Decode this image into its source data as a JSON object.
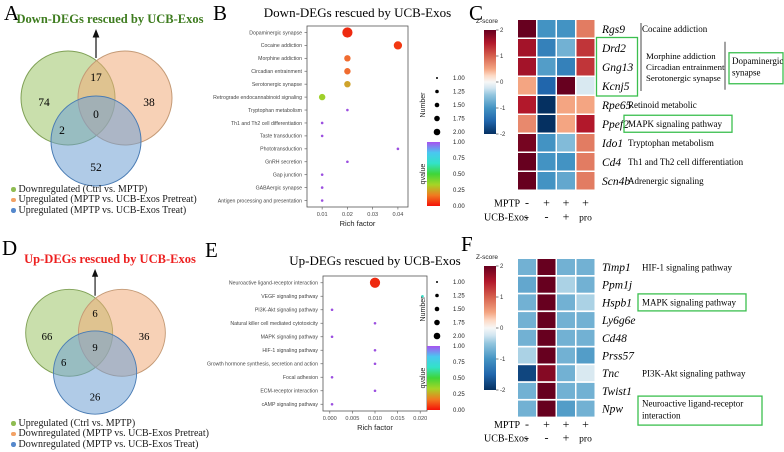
{
  "panel_letters": {
    "A": "A",
    "B": "B",
    "C": "C",
    "D": "D",
    "E": "E",
    "F": "F"
  },
  "colors": {
    "annotation_box_green": "#3bbf4f",
    "heatmap_max_red": "#67001f",
    "heatmap_min_blue": "#053061",
    "qvalue_gradient_top_to_bottom": [
      "#a852f0",
      "#49c8f0",
      "#32e3c8",
      "#3fd538",
      "#a5d526",
      "#f07a20",
      "#f51208"
    ]
  },
  "chart_data": [
    {
      "id": "A",
      "type": "venn",
      "title": "Down-DEGs rescued by UCB-Exos",
      "title_color": "#3e7c1f",
      "sets": [
        {
          "label": "Downregulated (Ctrl vs. MPTP)",
          "fill": "#9cc468",
          "stroke": "#7fa055",
          "bullet": "#8fbc52"
        },
        {
          "label": "Upregulated (MPTP vs. UCB-Exos Pretreat)",
          "fill": "#f0ab7a",
          "stroke": "#c49a76",
          "bullet": "#f2a266"
        },
        {
          "label": "Upregulated (MPTP vs. UCB-Exos Treat)",
          "fill": "#6fa0d4",
          "stroke": "#4a7cb4",
          "bullet": "#5588cc"
        }
      ],
      "counts": {
        "a_only": 74,
        "b_only": 38,
        "c_only": 52,
        "ab": 17,
        "ac": 2,
        "abc": 0
      }
    },
    {
      "id": "B",
      "type": "scatter",
      "title": "Down-DEGs rescued by UCB-Exos",
      "xlabel": "Rich factor",
      "xlim": [
        0.004,
        0.044
      ],
      "xticks": [
        0.01,
        0.02,
        0.03,
        0.04
      ],
      "xtick_labels": [
        "0.01",
        "0.02",
        "0.03",
        "0.04"
      ],
      "points": [
        {
          "label": "Dopaminergic synapse",
          "x": 0.02,
          "number": 2.0,
          "qvalue": 0.0,
          "color": "#ee2a10"
        },
        {
          "label": "Cocaine addiction",
          "x": 0.04,
          "number": 1.75,
          "qvalue": 0.03,
          "color": "#f23812"
        },
        {
          "label": "Morphine addiction",
          "x": 0.02,
          "number": 1.5,
          "qvalue": 0.12,
          "color": "#f06c30"
        },
        {
          "label": "Circadian entrainment",
          "x": 0.02,
          "number": 1.5,
          "qvalue": 0.12,
          "color": "#f06c30"
        },
        {
          "label": "Serotonergic synapse",
          "x": 0.02,
          "number": 1.5,
          "qvalue": 0.3,
          "color": "#cfa32b"
        },
        {
          "label": "Retrograde endocannabinoid signaling",
          "x": 0.01,
          "number": 1.5,
          "qvalue": 0.45,
          "color": "#9fd02a"
        },
        {
          "label": "Tryptophan metabolism",
          "x": 0.02,
          "number": 1.0,
          "qvalue": 1.0,
          "color": "#9b4fe0"
        },
        {
          "label": "Th1 and Th2 cell differentiation",
          "x": 0.01,
          "number": 1.0,
          "qvalue": 1.0,
          "color": "#9b4fe0"
        },
        {
          "label": "Taste transduction",
          "x": 0.01,
          "number": 1.0,
          "qvalue": 1.0,
          "color": "#9b4fe0"
        },
        {
          "label": "Phototransduction",
          "x": 0.04,
          "number": 1.0,
          "qvalue": 1.0,
          "color": "#9b4fe0"
        },
        {
          "label": "GnRH secretion",
          "x": 0.02,
          "number": 1.0,
          "qvalue": 1.0,
          "color": "#9b4fe0"
        },
        {
          "label": "Gap junction",
          "x": 0.01,
          "number": 1.0,
          "qvalue": 1.0,
          "color": "#9b4fe0"
        },
        {
          "label": "GABAergic synapse",
          "x": 0.01,
          "number": 1.0,
          "qvalue": 1.0,
          "color": "#9b4fe0"
        },
        {
          "label": "Antigen processing and presentation",
          "x": 0.01,
          "number": 1.0,
          "qvalue": 1.0,
          "color": "#9b4fe0"
        }
      ],
      "legend": {
        "size_title": "Number",
        "sizes": [
          "1.00",
          "1.25",
          "1.50",
          "1.75",
          "2.00"
        ],
        "color_title": "qvalue",
        "color_ticks": [
          "1.00",
          "0.75",
          "0.50",
          "0.25",
          "0.00"
        ]
      }
    },
    {
      "id": "C",
      "type": "heatmap",
      "colorbar_title": "Z-score",
      "colorbar_ticks": [
        "2",
        "1",
        "0",
        "-1",
        "-2"
      ],
      "vmin": -2,
      "vmax": 2,
      "rows": [
        {
          "gene": "Rgs9",
          "values": [
            2.0,
            -1.0,
            -1.0,
            0.8
          ]
        },
        {
          "gene": "Drd2",
          "values": [
            1.6,
            -1.2,
            -0.7,
            1.3
          ]
        },
        {
          "gene": "Gng13",
          "values": [
            1.6,
            -0.9,
            -1.2,
            1.3
          ]
        },
        {
          "gene": "Kcnj5",
          "values": [
            0.5,
            -1.5,
            2.0,
            -0.2
          ]
        },
        {
          "gene": "Rpe65",
          "values": [
            1.5,
            -2.0,
            0.5,
            0.5
          ]
        },
        {
          "gene": "Ppef2",
          "values": [
            0.7,
            -2.0,
            0.5,
            1.5
          ]
        },
        {
          "gene": "Ido1",
          "values": [
            1.9,
            -1.0,
            -0.6,
            0.8
          ]
        },
        {
          "gene": "Cd4",
          "values": [
            2.0,
            -1.0,
            -1.0,
            0.8
          ]
        },
        {
          "gene": "Scn4b",
          "values": [
            2.0,
            -1.0,
            -0.8,
            0.8
          ]
        }
      ],
      "condition_rows": [
        {
          "name": "MPTP",
          "values": [
            "-",
            "+",
            "+",
            "+"
          ]
        },
        {
          "name": "UCB-Exos",
          "values": [
            "-",
            "-",
            "+",
            "pro"
          ]
        }
      ],
      "annotations": [
        {
          "row": 0,
          "text": "Cocaine addiction",
          "boxed": false
        },
        {
          "row": 4,
          "text": "Retinoid metabolic",
          "boxed": false
        },
        {
          "row": 5,
          "text": "MAPK signaling pathway",
          "boxed": true
        },
        {
          "row": 6,
          "text": "Tryptophan metabolism",
          "boxed": false
        },
        {
          "row": 7,
          "text": "Th1 and Th2 cell differentiation",
          "boxed": false
        },
        {
          "row": 8,
          "text": "Adrenergic signaling",
          "boxed": false
        }
      ],
      "group": {
        "boxed_gene_rows": [
          1,
          3
        ],
        "lines": [
          "Morphine addiction",
          "Circadian entrainment",
          "Serotonergic synapse"
        ],
        "side_label_lines": [
          "Dopaminergic",
          "synapse"
        ]
      }
    },
    {
      "id": "D",
      "type": "venn",
      "title": "Up-DEGs rescued by UCB-Exos",
      "title_color": "#ed1f1f",
      "sets": [
        {
          "label": "Upregulated (Ctrl vs. MPTP)",
          "fill": "#9cc468",
          "stroke": "#7fa055",
          "bullet": "#8fbc52"
        },
        {
          "label": "Downregulated (MPTP vs. UCB-Exos Pretreat)",
          "fill": "#f0ab7a",
          "stroke": "#c49a76",
          "bullet": "#f2a266"
        },
        {
          "label": "Downregulated (MPTP vs. UCB-Exos Treat)",
          "fill": "#6fa0d4",
          "stroke": "#4a7cb4",
          "bullet": "#5588cc"
        }
      ],
      "counts": {
        "a_only": 66,
        "b_only": 36,
        "c_only": 26,
        "ab": 6,
        "ac": 6,
        "abc": 9
      }
    },
    {
      "id": "E",
      "type": "scatter",
      "title": "Up-DEGs rescued by UCB-Exos",
      "xlabel": "Rich factor",
      "xlim": [
        -0.0015,
        0.0215
      ],
      "xticks": [
        0.0,
        0.005,
        0.01,
        0.015,
        0.02
      ],
      "xtick_labels": [
        "0.000",
        "0.005",
        "0.010",
        "0.015",
        "0.020"
      ],
      "points": [
        {
          "label": "Neuroactive ligand-receptor interaction",
          "x": 0.01,
          "number": 2.0,
          "qvalue": 0.0,
          "color": "#ee2a10"
        },
        {
          "label": "VEGF signaling pathway",
          "x": 0.0205,
          "number": 1.0,
          "qvalue": 0.75,
          "color": "#35e0c8"
        },
        {
          "label": "PI3K-Akt signaling pathway",
          "x": 0.0005,
          "number": 1.0,
          "qvalue": 1.0,
          "color": "#9b4fe0"
        },
        {
          "label": "Natural killer cell mediated cytotoxicity",
          "x": 0.01,
          "number": 1.0,
          "qvalue": 1.0,
          "color": "#9b4fe0"
        },
        {
          "label": "MAPK signaling pathway",
          "x": 0.0005,
          "number": 1.0,
          "qvalue": 1.0,
          "color": "#9b4fe0"
        },
        {
          "label": "HIF-1 signaling pathway",
          "x": 0.01,
          "number": 1.0,
          "qvalue": 1.0,
          "color": "#9b4fe0"
        },
        {
          "label": "Growth hormone synthesis, secretion and action",
          "x": 0.01,
          "number": 1.0,
          "qvalue": 1.0,
          "color": "#9b4fe0"
        },
        {
          "label": "Focal adhesion",
          "x": 0.0005,
          "number": 1.0,
          "qvalue": 1.0,
          "color": "#9b4fe0"
        },
        {
          "label": "ECM-receptor interaction",
          "x": 0.01,
          "number": 1.0,
          "qvalue": 1.0,
          "color": "#9b4fe0"
        },
        {
          "label": "cAMP signaling pathway",
          "x": 0.0005,
          "number": 1.0,
          "qvalue": 1.0,
          "color": "#9b4fe0"
        }
      ],
      "legend": {
        "size_title": "Number",
        "sizes": [
          "1.00",
          "1.25",
          "1.50",
          "1.75",
          "2.00"
        ],
        "color_title": "qvalue",
        "color_ticks": [
          "1.00",
          "0.75",
          "0.50",
          "0.25",
          "0.00"
        ]
      }
    },
    {
      "id": "F",
      "type": "heatmap",
      "colorbar_title": "Z-score",
      "colorbar_ticks": [
        "2",
        "1",
        "0",
        "-1",
        "-2"
      ],
      "vmin": -2,
      "vmax": 2,
      "rows": [
        {
          "gene": "Timp1",
          "values": [
            -0.7,
            2.0,
            -0.7,
            -0.7
          ]
        },
        {
          "gene": "Ppm1j",
          "values": [
            -0.8,
            2.0,
            -0.4,
            -0.7
          ]
        },
        {
          "gene": "Hspb1",
          "values": [
            -0.7,
            2.0,
            -0.7,
            -0.4
          ]
        },
        {
          "gene": "Ly6g6e",
          "values": [
            -0.7,
            2.0,
            -0.7,
            -0.7
          ]
        },
        {
          "gene": "Cd48",
          "values": [
            -0.7,
            2.0,
            -0.7,
            -0.7
          ]
        },
        {
          "gene": "Prss57",
          "values": [
            -0.4,
            2.0,
            -0.7,
            -0.9
          ]
        },
        {
          "gene": "Tnc",
          "values": [
            -1.8,
            1.8,
            -0.7,
            -0.2
          ]
        },
        {
          "gene": "Twist1",
          "values": [
            -0.7,
            2.0,
            -0.7,
            -0.7
          ]
        },
        {
          "gene": "Npw",
          "values": [
            -0.7,
            2.0,
            -0.9,
            -0.7
          ]
        }
      ],
      "condition_rows": [
        {
          "name": "MPTP",
          "values": [
            "-",
            "+",
            "+",
            "+"
          ]
        },
        {
          "name": "UCB-Exos",
          "values": [
            "-",
            "-",
            "+",
            "pro"
          ]
        }
      ],
      "annotations": [
        {
          "row": 0,
          "text": "HIF-1 signaling pathway",
          "boxed": false
        },
        {
          "row": 2,
          "text": "MAPK signaling pathway",
          "boxed": true
        },
        {
          "row": 6,
          "text": "PI3K-Akt signaling pathway",
          "boxed": false
        },
        {
          "row": 8,
          "lines": [
            "Neuroactive ligand-receptor",
            "interaction"
          ],
          "boxed": true
        }
      ]
    }
  ]
}
